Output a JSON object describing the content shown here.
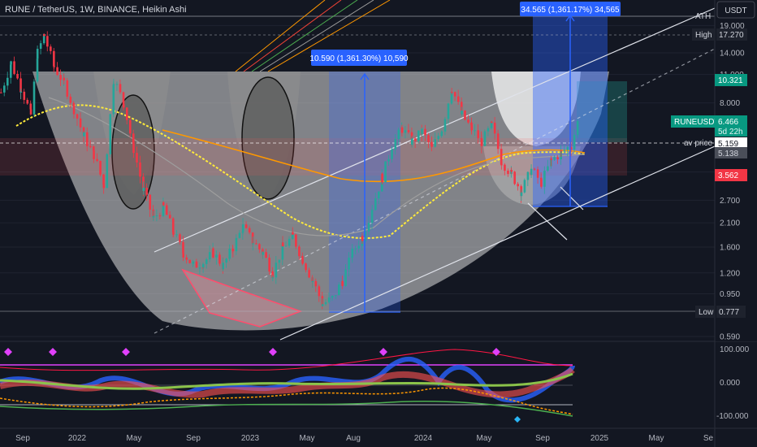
{
  "header": {
    "symbol_title": "RUNE / TetherUS, 1W, BINANCE, Heikin Ashi",
    "currency": "USDT"
  },
  "chart_data": [
    {
      "type": "candlestick",
      "chart_style": "Heikin Ashi",
      "scale": "log",
      "title": "RUNE / TetherUS, 1W, BINANCE, Heikin Ashi",
      "ylim": [
        0.55,
        25
      ],
      "y_ticks": [
        "19.000",
        "14.000",
        "11.000",
        "8.000",
        "3.700",
        "2.700",
        "2.100",
        "1.600",
        "1.200",
        "0.950",
        "0.590"
      ],
      "x_ticks": [
        "Sep",
        "2022",
        "May",
        "Sep",
        "2023",
        "May",
        "Aug",
        "2024",
        "May",
        "Sep",
        "2025",
        "May",
        "Se"
      ],
      "price_labels": {
        "ath": "ATH",
        "high_label": "High",
        "high_value": "17.270",
        "level_upper": "10.321",
        "last_symbol": "RUNEUSDT",
        "last_price": "6.466",
        "countdown": "5d 22h",
        "av_price_label": "av price",
        "av_price_value": "5.159",
        "level_avg2": "5.138",
        "level_lower": "3.562",
        "low_label": "Low",
        "low_value": "0.777"
      },
      "measurements": [
        {
          "label": "10.590 (1,361.30%) 10,590",
          "from_price": 0.725,
          "to_price": 10.59
        },
        {
          "label": "34.565 (1,361.17%) 34,565",
          "from_price": 2.55,
          "to_price": 34.565
        }
      ],
      "price_series": [
        {
          "t": 0,
          "p": 9.0
        },
        {
          "t": 3,
          "p": 12.5
        },
        {
          "t": 6,
          "p": 9.5
        },
        {
          "t": 9,
          "p": 7.0
        },
        {
          "t": 11,
          "p": 14.0
        },
        {
          "t": 13,
          "p": 17.0
        },
        {
          "t": 16,
          "p": 12.0
        },
        {
          "t": 19,
          "p": 10.0
        },
        {
          "t": 22,
          "p": 7.5
        },
        {
          "t": 25,
          "p": 5.5
        },
        {
          "t": 28,
          "p": 4.5
        },
        {
          "t": 31,
          "p": 3.2
        },
        {
          "t": 34,
          "p": 10.5
        },
        {
          "t": 37,
          "p": 8.0
        },
        {
          "t": 40,
          "p": 4.8
        },
        {
          "t": 43,
          "p": 3.0
        },
        {
          "t": 46,
          "p": 2.2
        },
        {
          "t": 49,
          "p": 2.5
        },
        {
          "t": 52,
          "p": 1.9
        },
        {
          "t": 55,
          "p": 1.5
        },
        {
          "t": 58,
          "p": 1.3
        },
        {
          "t": 61,
          "p": 1.35
        },
        {
          "t": 64,
          "p": 1.5
        },
        {
          "t": 67,
          "p": 1.3
        },
        {
          "t": 70,
          "p": 1.6
        },
        {
          "t": 73,
          "p": 2.0
        },
        {
          "t": 76,
          "p": 1.7
        },
        {
          "t": 79,
          "p": 1.5
        },
        {
          "t": 82,
          "p": 1.2
        },
        {
          "t": 85,
          "p": 1.6
        },
        {
          "t": 88,
          "p": 1.8
        },
        {
          "t": 91,
          "p": 1.4
        },
        {
          "t": 94,
          "p": 1.1
        },
        {
          "t": 97,
          "p": 0.85
        },
        {
          "t": 100,
          "p": 0.9
        },
        {
          "t": 103,
          "p": 1.1
        },
        {
          "t": 106,
          "p": 1.5
        },
        {
          "t": 109,
          "p": 1.8
        },
        {
          "t": 112,
          "p": 2.5
        },
        {
          "t": 115,
          "p": 3.5
        },
        {
          "t": 118,
          "p": 5.0
        },
        {
          "t": 121,
          "p": 6.0
        },
        {
          "t": 124,
          "p": 5.2
        },
        {
          "t": 127,
          "p": 5.8
        },
        {
          "t": 130,
          "p": 4.8
        },
        {
          "t": 133,
          "p": 6.0
        },
        {
          "t": 136,
          "p": 9.5
        },
        {
          "t": 139,
          "p": 7.0
        },
        {
          "t": 142,
          "p": 6.0
        },
        {
          "t": 145,
          "p": 5.2
        },
        {
          "t": 148,
          "p": 6.2
        },
        {
          "t": 151,
          "p": 4.2
        },
        {
          "t": 154,
          "p": 3.6
        },
        {
          "t": 157,
          "p": 3.0
        },
        {
          "t": 160,
          "p": 3.8
        },
        {
          "t": 163,
          "p": 3.3
        },
        {
          "t": 166,
          "p": 4.2
        },
        {
          "t": 169,
          "p": 4.6
        },
        {
          "t": 172,
          "p": 5.0
        },
        {
          "t": 174,
          "p": 6.466
        }
      ],
      "oscillator": {
        "ylim": [
          -110,
          110
        ],
        "y_ticks": [
          "100.000",
          "0.000",
          "-100.000"
        ]
      }
    }
  ]
}
